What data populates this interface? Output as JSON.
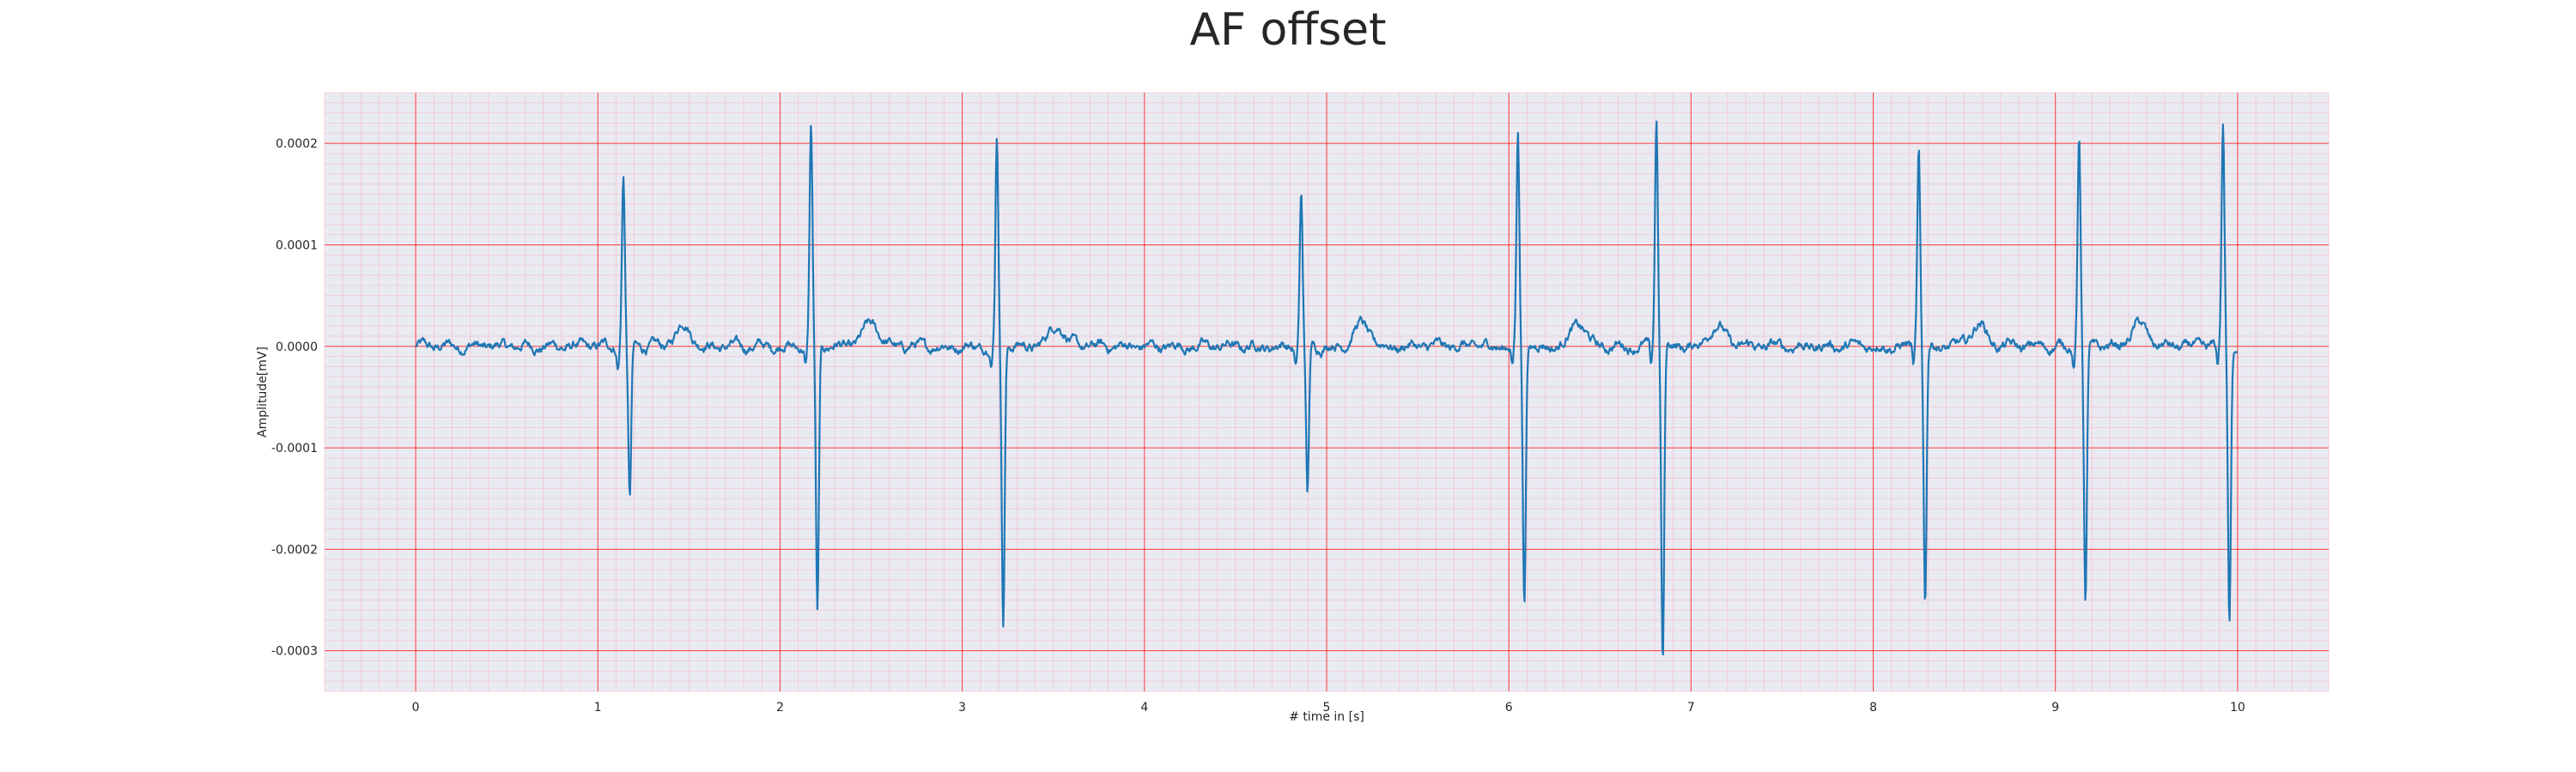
{
  "chart_data": {
    "type": "line",
    "title": "AF offset",
    "xlabel": "# time in [s]",
    "ylabel": "Amplitude[mV]",
    "xlim": [
      -0.5,
      10.5
    ],
    "ylim": [
      -0.00034,
      0.00025
    ],
    "x_ticks": [
      0,
      1,
      2,
      3,
      4,
      5,
      6,
      7,
      8,
      9,
      10
    ],
    "x_tick_labels": [
      "0",
      "1",
      "2",
      "3",
      "4",
      "5",
      "6",
      "7",
      "8",
      "9",
      "10"
    ],
    "y_ticks": [
      0.0002,
      0.0001,
      0.0,
      -0.0001,
      -0.0002,
      -0.0003
    ],
    "y_tick_labels": [
      "0.0002",
      "0.0001",
      "0.0000",
      "-0.0001",
      "-0.0002",
      "-0.0003"
    ],
    "grid": true,
    "minor_grid": true,
    "colors": {
      "line": "#1f77b4",
      "background": "#eaeaf2",
      "major_grid": "#ff0000",
      "minor_grid": "#f7a8b8"
    },
    "series": [
      {
        "values": "ecg-trace",
        "r_peaks": [
          {
            "t": 1.14,
            "peak": 0.00017,
            "trough": -0.000153
          },
          {
            "t": 2.17,
            "peak": 0.000217,
            "trough": -0.000265
          },
          {
            "t": 3.19,
            "peak": 0.000207,
            "trough": -0.000273
          },
          {
            "t": 4.86,
            "peak": 0.000149,
            "trough": -0.000148
          },
          {
            "t": 6.05,
            "peak": 0.000208,
            "trough": -0.000253
          },
          {
            "t": 6.81,
            "peak": 0.000225,
            "trough": -0.000313
          },
          {
            "t": 8.25,
            "peak": 0.000193,
            "trough": -0.000253
          },
          {
            "t": 9.13,
            "peak": 0.000208,
            "trough": -0.000257
          },
          {
            "t": 9.92,
            "peak": 0.000219,
            "trough": -0.000275
          }
        ]
      }
    ]
  }
}
